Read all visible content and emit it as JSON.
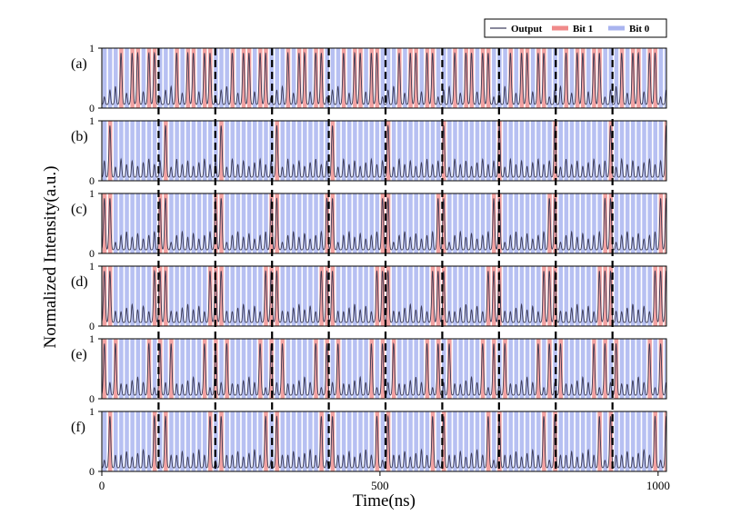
{
  "chart_data": {
    "type": "line",
    "xlabel": "Time(ns)",
    "ylabel": "Normalized Intensity(a.u.)",
    "x_ticks": [
      0,
      500,
      1000
    ],
    "xlim": [
      0,
      1015
    ],
    "ylim": [
      0,
      1
    ],
    "y_ticks": [
      0,
      1
    ],
    "bit_period_ns": 10,
    "word_length_bits": 10,
    "dashed_boundaries_ns": [
      102,
      204,
      306,
      408,
      510,
      612,
      714,
      816,
      918
    ],
    "legend": {
      "placement": "top-right",
      "entries": [
        {
          "label": "Output",
          "kind": "line",
          "color": "#404060"
        },
        {
          "label": "Bit 1",
          "kind": "band",
          "color": "#f08a8a"
        },
        {
          "label": "Bit 0",
          "kind": "band",
          "color": "#a9b4ef"
        }
      ]
    },
    "colors": {
      "bit1": "#f2a2a2",
      "bit0": "#b7c0f2",
      "line": "#3a3a55",
      "dash": "#000000"
    },
    "panels": [
      {
        "label": "(a)",
        "pattern": [
          0,
          0,
          0,
          1,
          0,
          1,
          1,
          0,
          1,
          1
        ]
      },
      {
        "label": "(b)",
        "pattern": [
          0,
          1,
          0,
          0,
          0,
          0,
          0,
          0,
          0,
          0
        ]
      },
      {
        "label": "(c)",
        "pattern": [
          1,
          1,
          0,
          0,
          0,
          0,
          0,
          0,
          0,
          0
        ]
      },
      {
        "label": "(d)",
        "pattern": [
          1,
          1,
          0,
          0,
          0,
          0,
          0,
          0,
          0,
          1
        ]
      },
      {
        "label": "(e)",
        "pattern": [
          1,
          0,
          1,
          0,
          0,
          0,
          0,
          0,
          1,
          0
        ]
      },
      {
        "label": "(f)",
        "pattern": [
          0,
          1,
          0,
          0,
          0,
          0,
          0,
          0,
          0,
          1
        ]
      }
    ]
  }
}
